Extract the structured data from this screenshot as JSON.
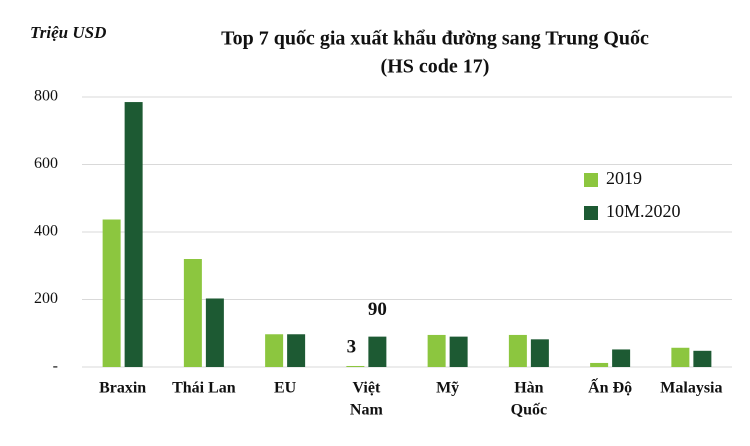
{
  "chart_data": {
    "type": "bar",
    "title": "Top 7 quốc gia xuất khẩu đường sang Trung Quốc",
    "subtitle": "(HS code 17)",
    "y_label": "Triệu USD",
    "categories": [
      "Braxin",
      "Thái Lan",
      "EU",
      [
        "Việt",
        "Nam"
      ],
      "Mỹ",
      [
        "Hàn",
        "Quốc"
      ],
      "Ấn Độ",
      "Malaysia"
    ],
    "series": [
      {
        "name": "2019",
        "color": "#8cc63f",
        "values": [
          437,
          320,
          97,
          3,
          95,
          95,
          12,
          57
        ],
        "value_labels": [
          null,
          null,
          null,
          "3",
          null,
          null,
          null,
          null
        ]
      },
      {
        "name": "10M.2020",
        "color": "#1d5a33",
        "values": [
          785,
          203,
          97,
          90,
          90,
          82,
          52,
          48
        ],
        "value_labels": [
          null,
          null,
          null,
          "90",
          null,
          null,
          null,
          null
        ]
      }
    ],
    "ylim": [
      0,
      800
    ],
    "yticks": [
      {
        "value": 0,
        "label": "-"
      },
      200,
      400,
      600,
      800
    ],
    "grid": true,
    "legend": "right"
  }
}
